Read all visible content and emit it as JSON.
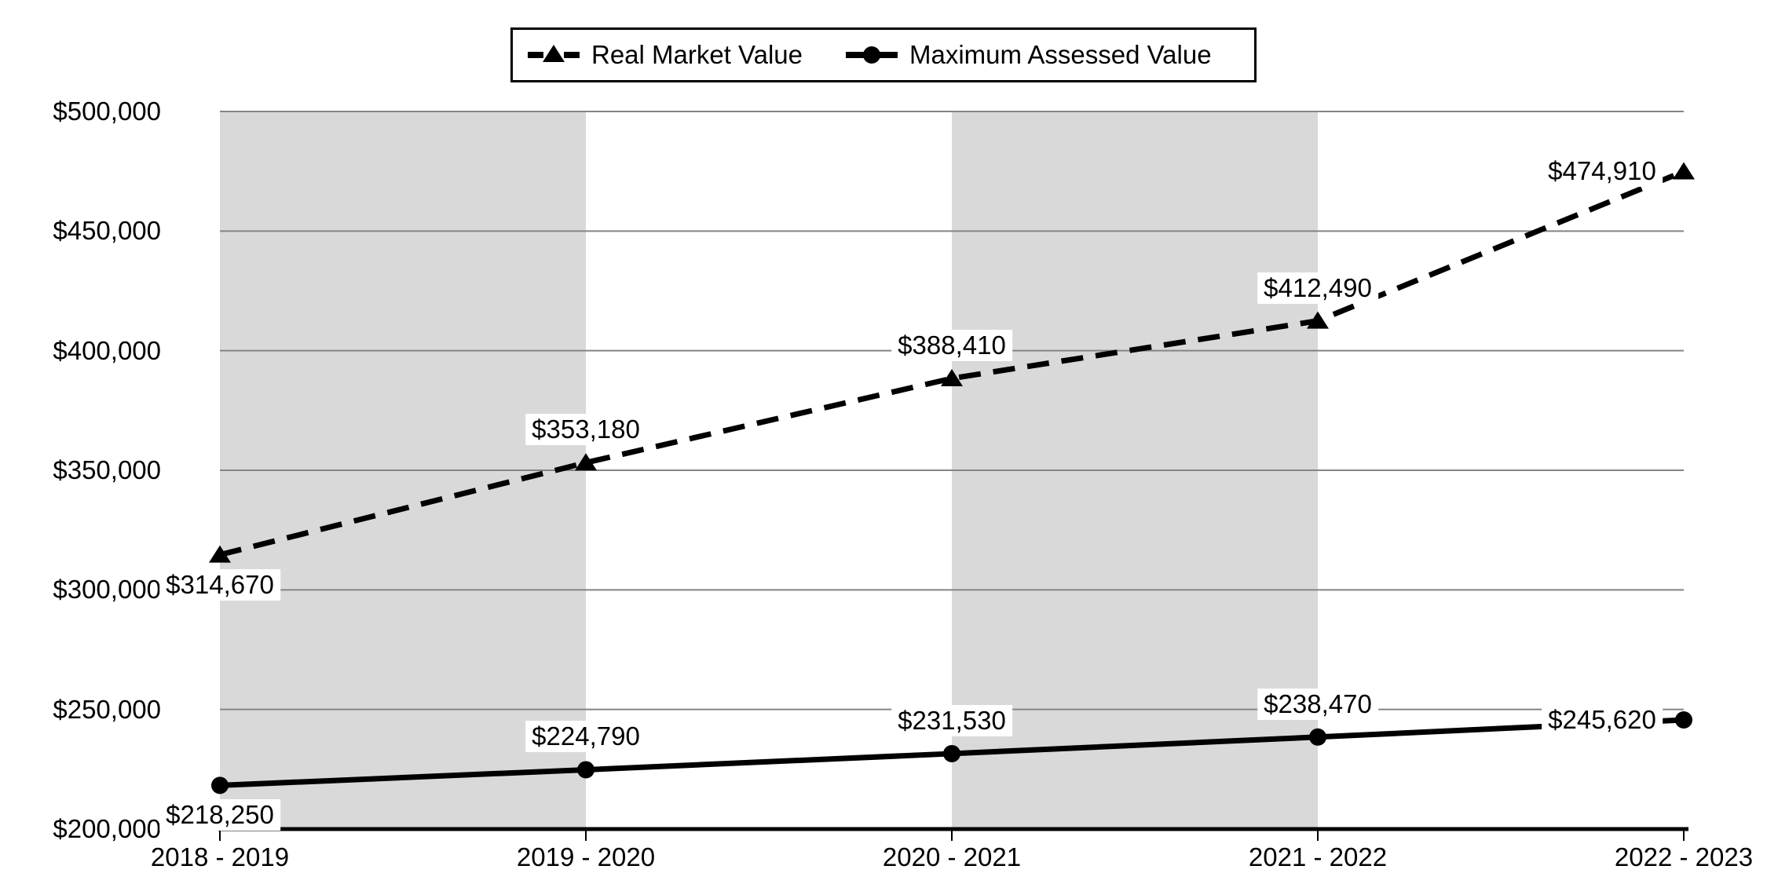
{
  "chart_data": {
    "type": "line",
    "title": "",
    "xlabel": "",
    "ylabel": "",
    "categories": [
      "2018 - 2019",
      "2019 - 2020",
      "2020 - 2021",
      "2021 - 2022",
      "2022 - 2023"
    ],
    "series": [
      {
        "name": "Real Market Value",
        "line_style": "dashed",
        "marker": "triangle",
        "values": [
          314670,
          353180,
          388410,
          412490,
          474910
        ],
        "data_labels": [
          "$314,670",
          "$353,180",
          "$388,410",
          "$412,490",
          "$474,910"
        ],
        "label_positions": [
          "below",
          "above",
          "above",
          "above",
          "left"
        ]
      },
      {
        "name": "Maximum Assessed Value",
        "line_style": "solid",
        "marker": "circle",
        "values": [
          218250,
          224790,
          231530,
          238470,
          245620
        ],
        "data_labels": [
          "$218,250",
          "$224,790",
          "$231,530",
          "$238,470",
          "$245,620"
        ],
        "label_positions": [
          "below",
          "above",
          "above",
          "above",
          "left"
        ]
      }
    ],
    "ylim": [
      200000,
      500000
    ],
    "ytick_step": 50000,
    "ytick_labels": [
      "$200,000",
      "$250,000",
      "$300,000",
      "$350,000",
      "$400,000",
      "$450,000",
      "$500,000"
    ],
    "grid": true,
    "legend_position": "top-center",
    "shaded_band_category_spans": [
      [
        0,
        1
      ],
      [
        2,
        3
      ]
    ],
    "colors": {
      "series": "#000000",
      "band": "#d9d9d9",
      "gridline": "#848484",
      "axis": "#000000",
      "text": "#000000",
      "label_background": "#ffffff",
      "background": "#ffffff"
    }
  }
}
